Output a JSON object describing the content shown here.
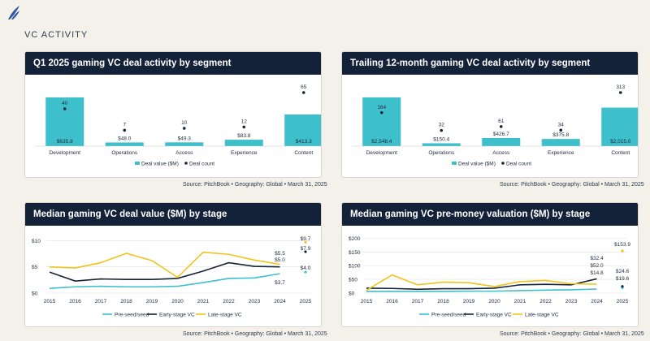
{
  "page": {
    "section_title": "VC ACTIVITY",
    "source_text": "Source: PitchBook • Geography: Global • March 31, 2025"
  },
  "colors": {
    "teal": "#3ebfcc",
    "navy": "#152238",
    "gold": "#f0c419",
    "header": "#142239"
  },
  "icons": {
    "logo": "pitchbook-logo-icon"
  },
  "chart_data": [
    {
      "type": "bar",
      "title": "Q1 2025 gaming VC deal activity by segment",
      "categories": [
        "Development",
        "Operations",
        "Access",
        "Experience",
        "Content"
      ],
      "series": [
        {
          "name": "Deal value ($M)",
          "values": [
            635.8,
            48.0,
            49.3,
            83.8,
            413.3
          ],
          "labels": [
            "$635.8",
            "$48.0",
            "$49.3",
            "$83.8",
            "$413.3"
          ]
        },
        {
          "name": "Deal count",
          "values": [
            40,
            7,
            10,
            12,
            65
          ],
          "labels": [
            "40",
            "7",
            "10",
            "12",
            "65"
          ]
        }
      ],
      "legend": "bottom"
    },
    {
      "type": "bar",
      "title": "Trailing 12-month gaming VC deal activity by segment",
      "categories": [
        "Development",
        "Operations",
        "Access",
        "Experience",
        "Content"
      ],
      "series": [
        {
          "name": "Deal value ($M)",
          "values": [
            2548.4,
            150.4,
            426.7,
            375.8,
            2015.0
          ],
          "labels": [
            "$2,548.4",
            "$150.4",
            "$426.7",
            "$375.8",
            "$2,015.0"
          ]
        },
        {
          "name": "Deal count",
          "values": [
            164,
            32,
            61,
            34,
            313
          ],
          "labels": [
            "164",
            "32",
            "61",
            "34",
            "313"
          ]
        }
      ],
      "legend": "bottom"
    },
    {
      "type": "line",
      "title": "Median gaming VC deal value ($M) by stage",
      "x": [
        "2015",
        "2016",
        "2017",
        "2018",
        "2019",
        "2020",
        "2021",
        "2022",
        "2023",
        "2024",
        "2025"
      ],
      "yticks": [
        "$0",
        "$5",
        "$10"
      ],
      "ylim": [
        0,
        11
      ],
      "series": [
        {
          "name": "Pre-seed/seed",
          "values": [
            0.9,
            1.2,
            1.3,
            1.2,
            1.2,
            1.3,
            2.0,
            2.8,
            2.9,
            3.7,
            4.0
          ]
        },
        {
          "name": "Early-stage VC",
          "values": [
            4.0,
            2.3,
            2.7,
            2.6,
            2.6,
            2.8,
            4.2,
            5.8,
            5.1,
            5.0,
            7.9
          ]
        },
        {
          "name": "Late-stage VC",
          "values": [
            5.0,
            4.8,
            5.8,
            7.6,
            6.2,
            3.0,
            7.8,
            7.4,
            6.3,
            5.5,
            9.7
          ]
        }
      ],
      "end_labels": [
        {
          "x": "2024",
          "text": "$5.5"
        },
        {
          "x": "2024",
          "text": "$5.0"
        },
        {
          "x": "2024",
          "text": "$3.7"
        },
        {
          "x": "2025",
          "text": "$9.7"
        },
        {
          "x": "2025",
          "text": "$7.9"
        },
        {
          "x": "2025",
          "text": "$4.0"
        }
      ],
      "legend": "bottom"
    },
    {
      "type": "line",
      "title": "Median gaming VC pre-money valuation ($M) by stage",
      "x": [
        "2015",
        "2016",
        "2017",
        "2018",
        "2019",
        "2020",
        "2021",
        "2022",
        "2023",
        "2024",
        "2025"
      ],
      "yticks": [
        "$0",
        "$50",
        "$100",
        "$150",
        "$200"
      ],
      "ylim": [
        0,
        210
      ],
      "series": [
        {
          "name": "Pre-seed/seed",
          "values": [
            6,
            6,
            6,
            6,
            7,
            7,
            9,
            11,
            12,
            14.8,
            19.6
          ]
        },
        {
          "name": "Early-stage VC",
          "values": [
            18,
            17,
            14,
            16,
            16,
            18,
            30,
            32,
            30,
            52.0,
            24.6
          ]
        },
        {
          "name": "Late-stage VC",
          "values": [
            10,
            66,
            30,
            40,
            38,
            24,
            42,
            46,
            34,
            32.4,
            153.9
          ]
        }
      ],
      "end_labels": [
        {
          "x": "2024",
          "text": "$32.4"
        },
        {
          "x": "2024",
          "text": "$52.0"
        },
        {
          "x": "2024",
          "text": "$14.8"
        },
        {
          "x": "2025",
          "text": "$153.9"
        },
        {
          "x": "2025",
          "text": "$24.6"
        },
        {
          "x": "2025",
          "text": "$19.6"
        }
      ],
      "legend": "bottom"
    }
  ]
}
